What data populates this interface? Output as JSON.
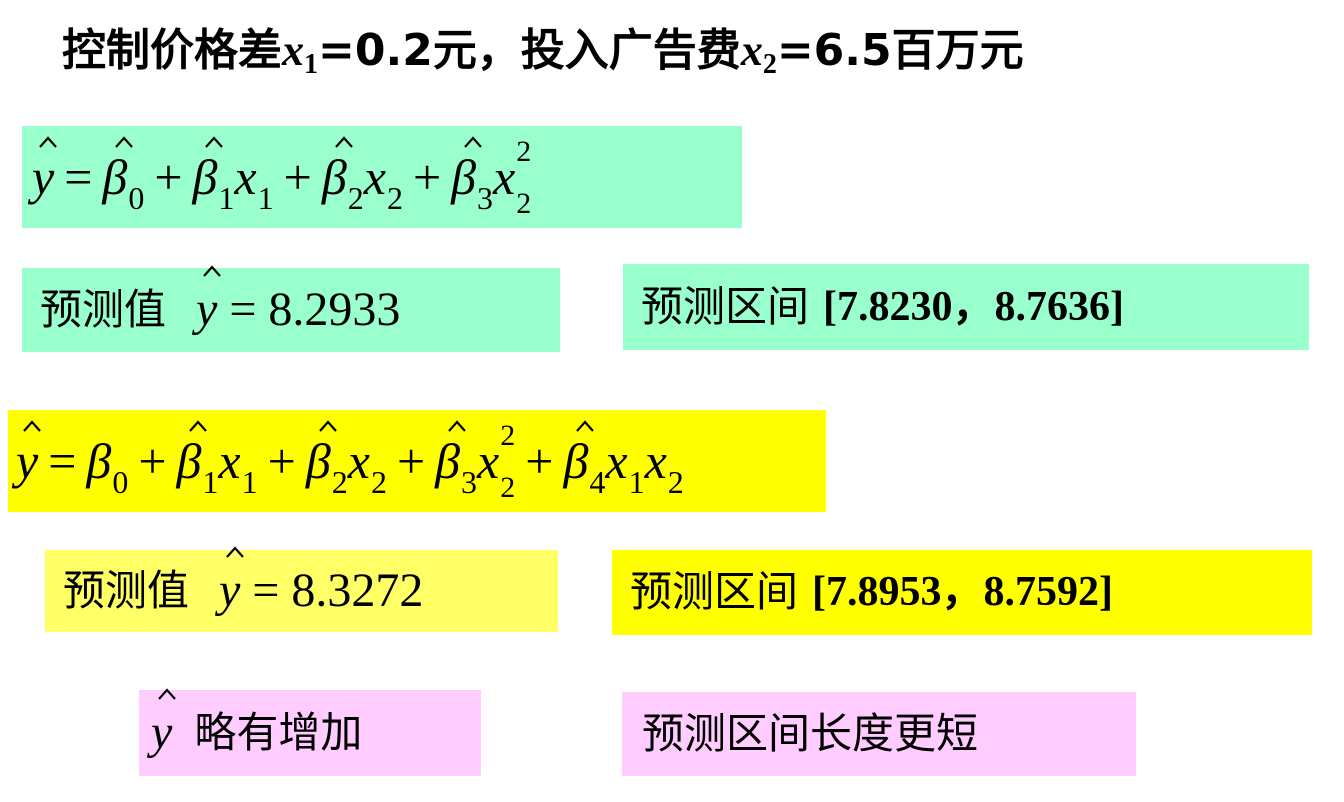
{
  "title": {
    "part1": "控制价格差",
    "var1": "x",
    "sub1": "1",
    "eq1": "=0.2元，投入广告费",
    "var2": "x",
    "sub2": "2",
    "eq2": "=6.5百万元"
  },
  "colors": {
    "green": "#99FFCC",
    "yellow": "#FFFF00",
    "light_yellow": "#FFFF66",
    "pink": "#FFCCFF"
  },
  "model1": {
    "equation": [
      {
        "v": "y",
        "hat": true
      },
      {
        "op": "="
      },
      {
        "v": "β",
        "hat": true,
        "sub": "0"
      },
      {
        "op": "+"
      },
      {
        "v": "β",
        "hat": true,
        "sub": "1"
      },
      {
        "v": "x",
        "sub": "1"
      },
      {
        "op": "+"
      },
      {
        "v": "β",
        "hat": true,
        "sub": "2"
      },
      {
        "v": "x",
        "sub": "2"
      },
      {
        "op": "+"
      },
      {
        "v": "β",
        "hat": true,
        "sub": "3"
      },
      {
        "v": "x",
        "sub": "2",
        "sup": "2"
      }
    ],
    "pred_label": "预测值",
    "pred_var": "y",
    "pred_eq": "= 8.2933",
    "interval_label": "预测区间",
    "interval": "[7.8230，8.7636]"
  },
  "model2": {
    "equation": [
      {
        "v": "y",
        "hat": true
      },
      {
        "op": "="
      },
      {
        "v": "β",
        "sub": "0"
      },
      {
        "op": "+"
      },
      {
        "v": "β",
        "hat": true,
        "sub": "1"
      },
      {
        "v": "x",
        "sub": "1"
      },
      {
        "op": "+"
      },
      {
        "v": "β",
        "hat": true,
        "sub": "2"
      },
      {
        "v": "x",
        "sub": "2"
      },
      {
        "op": "+"
      },
      {
        "v": "β",
        "hat": true,
        "sub": "3"
      },
      {
        "v": "x",
        "sub": "2",
        "sup": "2"
      },
      {
        "op": "+"
      },
      {
        "v": "β",
        "hat": true,
        "sub": "4"
      },
      {
        "v": "x",
        "sub": "1"
      },
      {
        "v": "x",
        "sub": "2"
      }
    ],
    "pred_label": "预测值",
    "pred_var": "y",
    "pred_eq": "= 8.3272",
    "interval_label": "预测区间",
    "interval": "[7.8953，8.7592]"
  },
  "conclusions": {
    "left_var": "y",
    "left_text": "略有增加",
    "right_text": "预测区间长度更短"
  }
}
